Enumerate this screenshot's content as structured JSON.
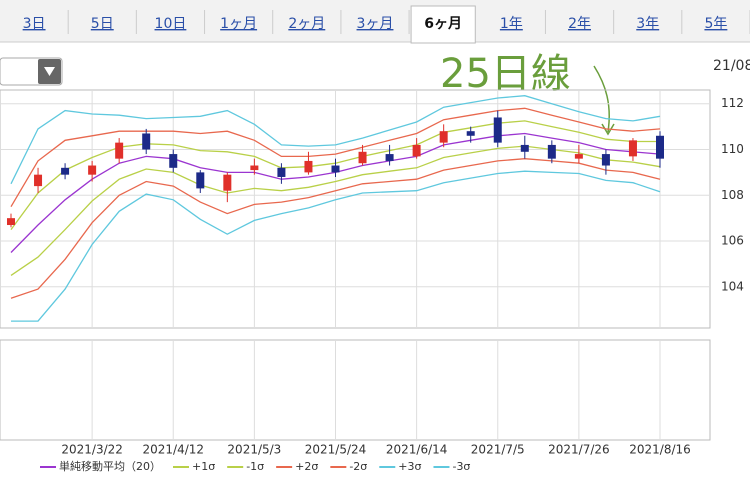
{
  "tabs": [
    "3日",
    "5日",
    "10日",
    "1ヶ月",
    "2ヶ月",
    "3ヶ月",
    "6ヶ月",
    "1年",
    "2年",
    "3年",
    "5年"
  ],
  "selected_tab": 6,
  "chart_data": {
    "type": "candlestick",
    "date_label": "21/08",
    "annotation": "25日線",
    "annotation_color": "#6a9e3c",
    "categories": [
      null,
      null,
      null,
      "2021/3/22",
      null,
      null,
      "2021/4/12",
      null,
      null,
      "2021/5/3",
      null,
      null,
      "2021/5/24",
      null,
      null,
      "2021/6/14",
      null,
      null,
      "2021/7/5",
      null,
      null,
      "2021/7/26",
      null,
      null,
      "2021/8/16"
    ],
    "candles": {
      "open": [
        106.7,
        108.4,
        109.2,
        108.9,
        109.6,
        110.7,
        109.8,
        109.0,
        108.2,
        109.1,
        109.2,
        109.0,
        109.3,
        109.4,
        109.8,
        109.7,
        110.3,
        110.8,
        111.4,
        110.2,
        110.2,
        109.6,
        109.8,
        109.7,
        110.6
      ],
      "high": [
        107.2,
        109.2,
        109.4,
        109.5,
        110.5,
        110.9,
        110.0,
        109.1,
        109.0,
        109.6,
        109.4,
        109.9,
        109.6,
        110.2,
        110.2,
        110.5,
        111.1,
        111.0,
        111.7,
        110.6,
        110.4,
        110.2,
        110.0,
        110.5,
        110.8
      ],
      "low": [
        106.6,
        108.1,
        108.7,
        108.6,
        109.4,
        109.8,
        109.0,
        108.1,
        107.7,
        108.9,
        108.5,
        108.9,
        108.8,
        109.3,
        109.3,
        109.6,
        110.1,
        110.3,
        110.1,
        109.6,
        109.4,
        109.4,
        108.9,
        109.5,
        109.2
      ],
      "close": [
        107.0,
        108.9,
        108.9,
        109.3,
        110.3,
        110.0,
        109.2,
        108.3,
        108.9,
        109.3,
        108.8,
        109.5,
        109.0,
        109.9,
        109.5,
        110.2,
        110.8,
        110.6,
        110.3,
        109.9,
        109.6,
        109.8,
        109.3,
        110.4,
        109.6
      ],
      "up_color": "#e0302a",
      "down_color": "#1c2a88"
    },
    "series": [
      {
        "name": "単純移動平均（20）",
        "color": "#9b35d0",
        "values": [
          105.5,
          106.7,
          107.8,
          108.7,
          109.4,
          109.7,
          109.6,
          109.2,
          109.0,
          109.0,
          108.7,
          108.8,
          109.0,
          109.3,
          109.5,
          109.7,
          110.2,
          110.4,
          110.6,
          110.7,
          110.5,
          110.3,
          110.0,
          109.9,
          109.8
        ]
      },
      {
        "name": "+1σ",
        "color": "#b9d048",
        "values": [
          106.5,
          108.1,
          109.1,
          109.65,
          110.1,
          110.25,
          110.2,
          109.95,
          109.9,
          109.7,
          109.2,
          109.25,
          109.4,
          109.7,
          109.95,
          110.2,
          110.75,
          110.95,
          111.15,
          111.25,
          111.0,
          110.75,
          110.45,
          110.35,
          110.35
        ]
      },
      {
        "name": "-1σ",
        "color": "#b9d048",
        "values": [
          104.5,
          105.3,
          106.5,
          107.75,
          108.7,
          109.15,
          109.0,
          108.45,
          108.1,
          108.3,
          108.2,
          108.35,
          108.6,
          108.9,
          109.05,
          109.2,
          109.65,
          109.85,
          110.05,
          110.15,
          110.0,
          109.85,
          109.55,
          109.45,
          109.25
        ]
      },
      {
        "name": "+2σ",
        "color": "#e8684e",
        "values": [
          107.5,
          109.5,
          110.4,
          110.6,
          110.8,
          110.8,
          110.8,
          110.7,
          110.8,
          110.4,
          109.7,
          109.7,
          109.8,
          110.1,
          110.4,
          110.7,
          111.3,
          111.5,
          111.7,
          111.8,
          111.5,
          111.2,
          110.9,
          110.8,
          110.9
        ]
      },
      {
        "name": "-2σ",
        "color": "#e8684e",
        "values": [
          103.5,
          103.9,
          105.2,
          106.8,
          108.0,
          108.6,
          108.4,
          107.7,
          107.2,
          107.6,
          107.7,
          107.9,
          108.2,
          108.5,
          108.6,
          108.7,
          109.1,
          109.3,
          109.5,
          109.6,
          109.5,
          109.4,
          109.1,
          109.0,
          108.7
        ]
      },
      {
        "name": "+3σ",
        "color": "#5fc8de",
        "values": [
          108.5,
          110.9,
          111.7,
          111.55,
          111.5,
          111.35,
          111.4,
          111.45,
          111.7,
          111.1,
          110.2,
          110.15,
          110.2,
          110.5,
          110.85,
          111.2,
          111.85,
          112.05,
          112.25,
          112.35,
          112.0,
          111.65,
          111.35,
          111.25,
          111.45
        ]
      },
      {
        "name": "-3σ",
        "color": "#5fc8de",
        "values": [
          102.5,
          102.5,
          103.9,
          105.85,
          107.3,
          108.05,
          107.8,
          106.95,
          106.3,
          106.9,
          107.2,
          107.45,
          107.8,
          108.1,
          108.15,
          108.2,
          108.55,
          108.75,
          108.95,
          109.05,
          109.0,
          108.95,
          108.65,
          108.55,
          108.15
        ]
      }
    ],
    "ylim": [
      102.2,
      112.6
    ],
    "yticks": [
      104,
      106,
      108,
      110,
      112
    ],
    "grid": true
  }
}
